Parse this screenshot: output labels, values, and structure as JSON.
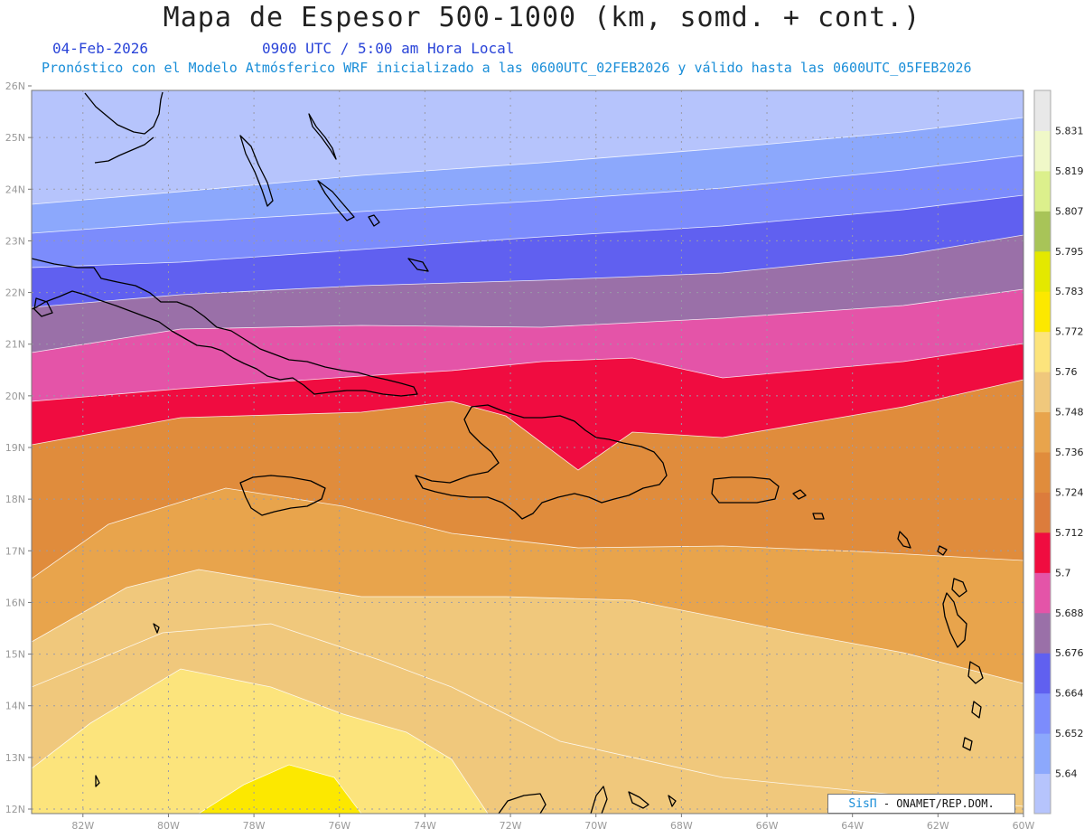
{
  "header": {
    "title": "Mapa de Espesor 500-1000 (km, somd. + cont.)",
    "date": "04-Feb-2026",
    "time": "0900 UTC / 5:00 am Hora Local",
    "forecast_line": "Pronóstico con el Modelo Atmósferico WRF inicializado a las 0600UTC_02FEB2026 y válido hasta las  0600UTC_05FEB2026"
  },
  "credit": {
    "brand": "SisΠ",
    "text": "- ONAMET/REP.DOM."
  },
  "colors": {
    "band_colors": [
      "#b6c4fc",
      "#8ca8fc",
      "#7c8cfc",
      "#6060f0",
      "#9a70a8",
      "#e454a8",
      "#f00c40",
      "#dc7c3c",
      "#e08c3c",
      "#e8a44c",
      "#f0c87c",
      "#fce47c",
      "#fce800",
      "#e4e800",
      "#a8c458",
      "#dcf08c",
      "#f0f8c8",
      "#e8e8e8"
    ]
  },
  "colorbar": {
    "labels": [
      "5.831",
      "5.819",
      "5.807",
      "5.795",
      "5.783",
      "5.772",
      "5.76",
      "5.748",
      "5.736",
      "5.724",
      "5.712",
      "5.7",
      "5.688",
      "5.676",
      "5.664",
      "5.652",
      "5.64"
    ]
  },
  "axes": {
    "lat_labels": [
      "26N",
      "25N",
      "24N",
      "23N",
      "22N",
      "21N",
      "20N",
      "19N",
      "18N",
      "17N",
      "16N",
      "15N",
      "14N",
      "13N",
      "12N"
    ],
    "lon_labels": [
      "82W",
      "80W",
      "78W",
      "76W",
      "74W",
      "72W",
      "70W",
      "68W",
      "66W",
      "64W",
      "62W",
      "60W"
    ]
  },
  "chart_data": {
    "type": "heatmap",
    "title": "Mapa de Espesor 500-1000 (km, somd. + cont.)",
    "xlim": [
      -83.2,
      -60
    ],
    "ylim": [
      12,
      26
    ],
    "units": "km",
    "contour_levels": [
      5.64,
      5.652,
      5.664,
      5.676,
      5.688,
      5.7,
      5.712,
      5.724,
      5.736,
      5.748,
      5.76,
      5.772,
      5.783,
      5.795,
      5.807,
      5.819,
      5.831
    ]
  }
}
